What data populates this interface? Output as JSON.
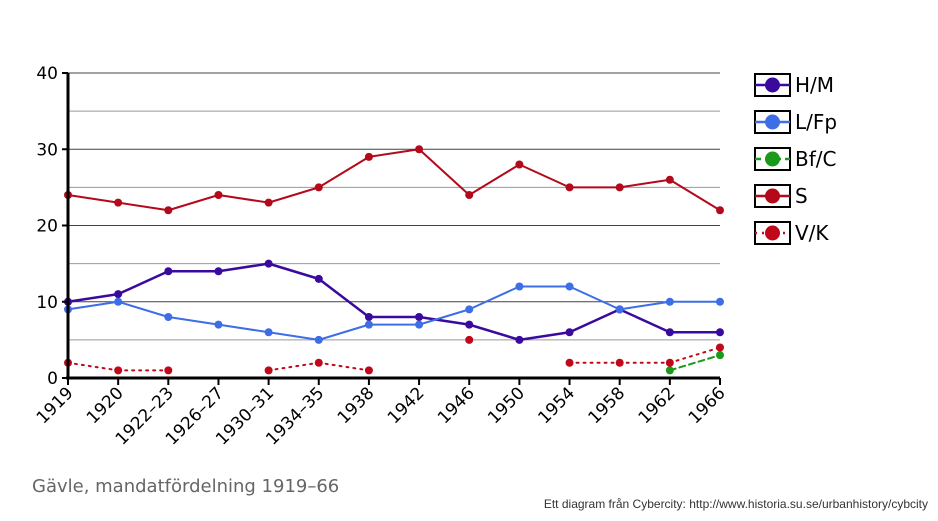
{
  "caption": "Gävle, mandatfördelning 1919–66",
  "credit": "Ett diagram från Cybercity: http://www.historia.su.se/urbanhistory/cybcity",
  "chart_data": {
    "type": "line",
    "categories": [
      "1919",
      "1920",
      "1922–23",
      "1926–27",
      "1930–31",
      "1934–35",
      "1938",
      "1942",
      "1946",
      "1950",
      "1954",
      "1958",
      "1962",
      "1966"
    ],
    "ylim": [
      0,
      40
    ],
    "yticks": [
      0,
      10,
      20,
      30,
      40
    ],
    "grid": true,
    "legend_position": "right",
    "series": [
      {
        "name": "H/M",
        "color": "#3a0a9e",
        "dash": "solid",
        "values": [
          10,
          11,
          14,
          14,
          15,
          13,
          8,
          8,
          7,
          5,
          6,
          9,
          6,
          6
        ]
      },
      {
        "name": "L/Fp",
        "color": "#3d6ee6",
        "dash": "solid",
        "values": [
          9,
          10,
          8,
          7,
          6,
          5,
          7,
          7,
          9,
          12,
          12,
          9,
          10,
          10
        ]
      },
      {
        "name": "Bf/C",
        "color": "#1a9a1a",
        "dash": "dashed",
        "values": [
          null,
          null,
          null,
          null,
          null,
          null,
          null,
          null,
          null,
          null,
          null,
          null,
          1,
          3
        ]
      },
      {
        "name": "S",
        "color": "#b3091a",
        "dash": "solid",
        "values": [
          24,
          23,
          22,
          24,
          23,
          25,
          29,
          30,
          24,
          28,
          25,
          25,
          26,
          22
        ]
      },
      {
        "name": "V/K",
        "color": "#c0081a",
        "dash": "dotted",
        "values": [
          2,
          1,
          1,
          null,
          1,
          2,
          1,
          null,
          5,
          null,
          2,
          2,
          2,
          4
        ]
      }
    ]
  }
}
